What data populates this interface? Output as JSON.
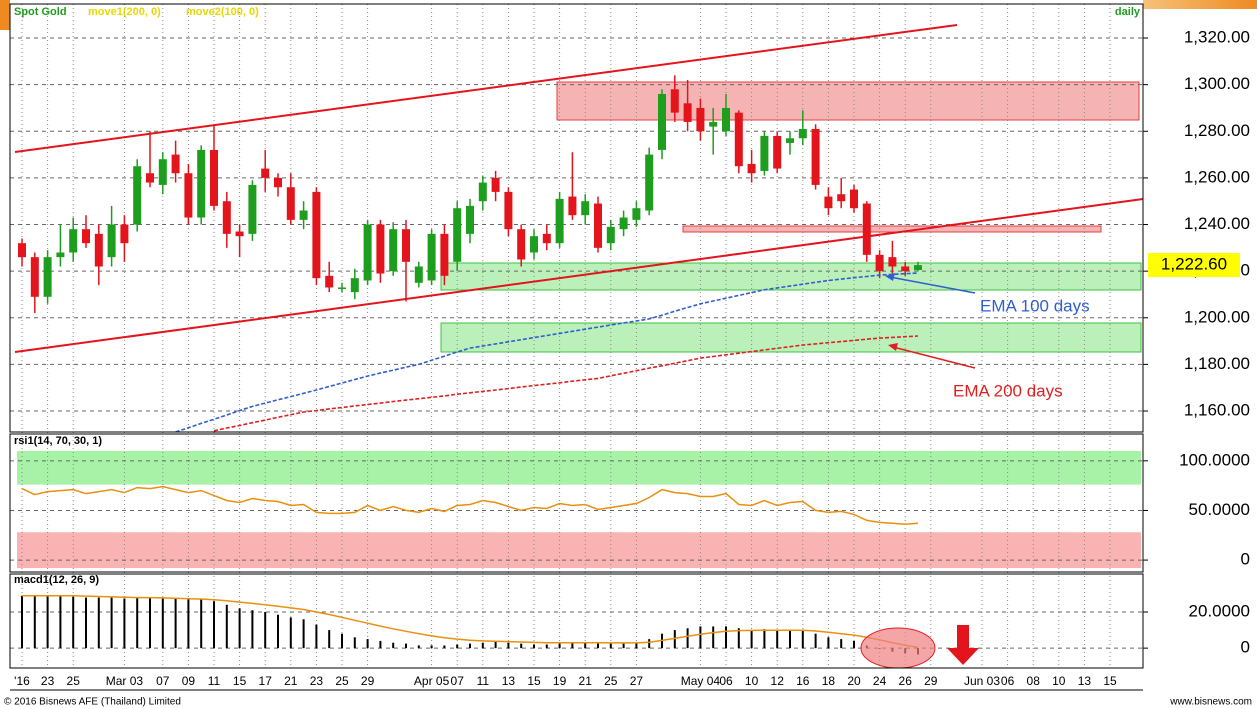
{
  "chart_data": [
    {
      "type": "candlestick",
      "title": "Spot Gold",
      "period": "daily",
      "categories": [
        "'16",
        null,
        "23",
        null,
        "25",
        null,
        null,
        null,
        "Mar 03",
        null,
        null,
        "07",
        null,
        "09",
        null,
        "11",
        null,
        "15",
        null,
        "17",
        null,
        "21",
        null,
        "23",
        null,
        "25",
        null,
        "29",
        null,
        null,
        null,
        null,
        "Apr 05",
        null,
        "07",
        null,
        "11",
        null,
        "13",
        null,
        "15",
        null,
        "19",
        null,
        "21",
        null,
        "25",
        null,
        "27",
        null,
        null,
        null,
        null,
        "May 04",
        null,
        "06",
        null,
        "10",
        null,
        "12",
        null,
        "16",
        null,
        "18",
        null,
        "20",
        null,
        "24",
        null,
        "26",
        null,
        "29",
        null,
        null,
        null,
        "Jun 03",
        null,
        "06",
        null,
        "08",
        null,
        "10",
        null,
        "13",
        null,
        "15"
      ],
      "open": [
        1232,
        1226,
        1209,
        1226,
        1228,
        1238,
        1236,
        1226,
        1240,
        1240,
        1262,
        1257,
        1270,
        1262,
        1243,
        1272,
        1250,
        1237,
        1236,
        1264,
        1260,
        1256,
        1242,
        1254,
        1218,
        1213,
        1211,
        1216,
        1240,
        1220,
        1238,
        1215,
        1216,
        1236,
        1224,
        1236,
        1250,
        1260,
        1254,
        1238,
        1228,
        1236,
        1232,
        1252,
        1244,
        1249,
        1232,
        1238,
        1242,
        1246,
        1272,
        1298,
        1292,
        1290,
        1282,
        1280,
        1288,
        1266,
        1263,
        1278,
        1275,
        1277,
        1281,
        1252,
        1253,
        1255,
        1249,
        1227,
        1226,
        1222,
        1220.5,
        null,
        null,
        null,
        null,
        null,
        null,
        null,
        null,
        null,
        null,
        null,
        null,
        null,
        null,
        null
      ],
      "high": [
        1234,
        1228,
        1229,
        1240,
        1243,
        1244,
        1240,
        1248,
        1244,
        1268,
        1280,
        1271,
        1276,
        1266,
        1274,
        1283,
        1254,
        1240,
        1259,
        1272,
        1262,
        1262,
        1250,
        1256,
        1224,
        1215,
        1221,
        1242,
        1242,
        1241,
        1242,
        1224,
        1238,
        1240,
        1250,
        1251,
        1261,
        1263,
        1256,
        1240,
        1238,
        1240,
        1254,
        1271,
        1253,
        1252,
        1242,
        1246,
        1250,
        1273,
        1298,
        1304,
        1302,
        1294,
        1290,
        1296,
        1289,
        1272,
        1280,
        1280,
        1280,
        1289,
        1283,
        1256,
        1260,
        1257,
        1250,
        1229,
        1233,
        1224,
        1224,
        null,
        null,
        null,
        null,
        null,
        null,
        null,
        null,
        null,
        null,
        null,
        null,
        null,
        null,
        null
      ],
      "low": [
        1222,
        1202,
        1206,
        1222,
        1224,
        1230,
        1214,
        1222,
        1224,
        1237,
        1256,
        1253,
        1258,
        1240,
        1240,
        1246,
        1230,
        1226,
        1233,
        1254,
        1252,
        1240,
        1238,
        1214,
        1211,
        1211,
        1208,
        1214,
        1215,
        1218,
        1207,
        1213,
        1214,
        1214,
        1220,
        1232,
        1246,
        1250,
        1235,
        1222,
        1225,
        1229,
        1230,
        1242,
        1240,
        1228,
        1229,
        1235,
        1239,
        1244,
        1268,
        1284,
        1280,
        1276,
        1270,
        1278,
        1262,
        1258,
        1261,
        1262,
        1270,
        1274,
        1255,
        1244,
        1247,
        1245,
        1224,
        1217,
        1219,
        1218,
        1220,
        null,
        null,
        null,
        null,
        null,
        null,
        null,
        null,
        null,
        null,
        null,
        null,
        null,
        null,
        null
      ],
      "close": [
        1226,
        1209,
        1226,
        1228,
        1238,
        1232,
        1222,
        1240,
        1232,
        1265,
        1258,
        1268,
        1262,
        1243,
        1272,
        1248,
        1236,
        1235,
        1257,
        1260,
        1256,
        1242,
        1246,
        1217,
        1213,
        1213,
        1217,
        1240,
        1219,
        1238,
        1224,
        1222,
        1236,
        1218,
        1247,
        1248,
        1258,
        1254,
        1238,
        1225,
        1235,
        1232,
        1251,
        1244,
        1250,
        1230,
        1239,
        1243,
        1247,
        1270,
        1296,
        1288,
        1284,
        1280,
        1284,
        1290,
        1265,
        1262,
        1278,
        1264,
        1277,
        1281,
        1257,
        1247,
        1250,
        1247,
        1227,
        1220,
        1222,
        1220,
        1222.6,
        null,
        null,
        null,
        null,
        null,
        null,
        null,
        null,
        null,
        null,
        null,
        null,
        null,
        null,
        null
      ],
      "up_color": "#1e9e1e",
      "down_color": "#e3141b",
      "series": [
        {
          "name": "move1(200, 0)",
          "color": "#e02020",
          "values": [
            null,
            null,
            null,
            null,
            null,
            null,
            null,
            null,
            null,
            null,
            null,
            null,
            null,
            null,
            null,
            1151.5,
            1152.7,
            1153.8,
            1155,
            1156.1,
            1157.3,
            1158.4,
            1159.6,
            1160.2,
            1160.9,
            1161.5,
            1162.2,
            1162.8,
            1163.4,
            1164.1,
            1164.7,
            1165.3,
            1165.9,
            1166.5,
            1167.2,
            1167.8,
            1168.4,
            1169,
            1169.6,
            1170.3,
            1170.9,
            1171.5,
            1172.1,
            1172.8,
            1173.4,
            1174,
            1175.1,
            1176.2,
            1177.3,
            1178.4,
            1179.4,
            1180.5,
            1181.6,
            1182.7,
            1183.4,
            1184.1,
            1184.8,
            1185.5,
            1186.2,
            1186.9,
            1187.6,
            1188.3,
            1188.8,
            1189.3,
            1189.8,
            1190.3,
            1190.8,
            1191.3,
            1191.6,
            1191.9,
            1192.2,
            null,
            null,
            null,
            null,
            null,
            null,
            null,
            null,
            null,
            null,
            null,
            null,
            null,
            null,
            null
          ]
        },
        {
          "name": "move2(100, 0)",
          "color": "#2f5fd0",
          "values": [
            null,
            null,
            null,
            null,
            null,
            null,
            null,
            null,
            null,
            null,
            null,
            null,
            1151,
            1152.8,
            1154.7,
            1156.5,
            1158.3,
            1160.2,
            1162,
            1163.4,
            1164.8,
            1166.2,
            1167.6,
            1169,
            1170.5,
            1172,
            1173.5,
            1175,
            1176.3,
            1177.5,
            1178.8,
            1180,
            1181.8,
            1183.5,
            1185.3,
            1187,
            1187.9,
            1188.8,
            1189.7,
            1190.6,
            1191.5,
            1192.4,
            1193.3,
            1194.2,
            1195.1,
            1196,
            1196.9,
            1197.8,
            1198.6,
            1199.5,
            1201.1,
            1202.8,
            1204.4,
            1206,
            1207.2,
            1208.4,
            1209.6,
            1210.8,
            1212,
            1212.8,
            1213.6,
            1214.4,
            1215.2,
            1216,
            1216.6,
            1217.2,
            1217.7,
            1218.3,
            1218.6,
            1218.9,
            1219.2,
            null,
            null,
            null,
            null,
            null,
            null,
            null,
            null,
            null,
            null,
            null,
            null,
            null,
            null,
            null
          ]
        }
      ],
      "last": {
        "value": 1222.6,
        "label": "1,222.60"
      },
      "annotations": [
        "EMA 100 days",
        "EMA 200 days"
      ],
      "ylim": [
        1151,
        1334.6
      ],
      "yticks": [
        {
          "value": 1160,
          "label": "1,160.00"
        },
        {
          "value": 1180,
          "label": "1,180.00"
        },
        {
          "value": 1200,
          "label": "1,200.00"
        },
        {
          "value": 1220,
          "label": "1,220.00"
        },
        {
          "value": 1240,
          "label": "1,240.00"
        },
        {
          "value": 1260,
          "label": "1,260.00"
        },
        {
          "value": 1280,
          "label": "1,280.00"
        },
        {
          "value": 1300,
          "label": "1,300.00"
        },
        {
          "value": 1320,
          "label": "1,320.00"
        }
      ],
      "grid": true
    },
    {
      "type": "line",
      "title": "rsi1(14, 70, 30, 1)",
      "color": "#e8900f",
      "values": [
        72,
        66,
        69,
        70,
        71,
        67,
        69,
        71,
        68,
        73,
        72,
        74,
        71,
        68,
        70,
        65,
        60,
        58,
        62,
        60,
        59,
        55,
        56,
        48,
        47,
        47,
        48,
        55,
        50,
        54,
        50,
        48,
        52,
        49,
        55,
        56,
        60,
        58,
        54,
        50,
        53,
        52,
        57,
        55,
        56,
        51,
        53,
        55,
        57,
        63,
        71,
        68,
        67,
        64,
        64,
        67,
        56,
        55,
        60,
        55,
        58,
        59,
        50,
        48,
        49,
        46,
        40,
        38,
        37,
        36,
        37
      ],
      "bands": [
        {
          "from": 76,
          "to": 110,
          "color": "#a8f2a8"
        },
        {
          "from": -8,
          "to": 28,
          "color": "#f9b3b3"
        }
      ],
      "ylim": [
        -10,
        125
      ],
      "yticks": [
        0,
        {
          "value": 50,
          "label": "50.0000"
        },
        {
          "value": 100,
          "label": "100.0000"
        }
      ],
      "grid": true
    },
    {
      "type": "macd",
      "title": "macd1(12, 26, 9)",
      "color": "#000000",
      "signal_color": "#e8900f",
      "values": [
        29,
        29,
        29,
        29,
        28.5,
        28,
        28,
        28,
        27.5,
        28,
        28,
        28,
        27.5,
        27,
        27,
        26,
        24,
        22,
        21,
        20,
        18.5,
        17,
        16,
        13,
        10,
        8,
        6,
        5,
        4,
        3,
        2.5,
        1.5,
        1.5,
        1.5,
        2,
        2.5,
        3,
        3.5,
        3,
        2.5,
        2,
        2,
        2.5,
        3,
        3,
        2.5,
        2.5,
        2.5,
        3,
        5,
        8,
        10,
        11,
        12,
        12,
        12,
        11,
        10,
        10.5,
        10,
        10,
        10,
        8,
        6,
        5,
        4,
        1.5,
        -0.5,
        -2,
        -3,
        -3.5
      ],
      "signal": [
        29,
        29,
        29,
        29,
        29,
        28.8,
        28.6,
        28.4,
        28.2,
        28,
        28,
        27.8,
        27.6,
        27.4,
        27.2,
        26.8,
        26.2,
        25.5,
        24.8,
        24,
        23.2,
        22.3,
        21.4,
        20,
        18.6,
        17,
        15.4,
        13.8,
        12.2,
        10.7,
        9.3,
        8,
        6.8,
        5.8,
        5,
        4.4,
        4,
        3.8,
        3.6,
        3.4,
        3.2,
        3,
        3,
        3,
        3,
        3,
        2.9,
        2.9,
        2.9,
        3.3,
        4.3,
        5.4,
        6.6,
        7.7,
        8.6,
        9.3,
        9.7,
        9.8,
        9.9,
        9.9,
        9.9,
        9.9,
        9.5,
        8.8,
        8,
        7.2,
        6,
        4.6,
        3,
        1.6,
        0.4
      ],
      "ylim": [
        -11,
        40.5
      ],
      "yticks": [
        0,
        {
          "value": 20,
          "label": "20.0000"
        }
      ],
      "grid": true
    }
  ],
  "footer": {
    "left": "© 2016 Bisnews AFE (Thailand) Limited",
    "right": "www.bisnews.com"
  }
}
